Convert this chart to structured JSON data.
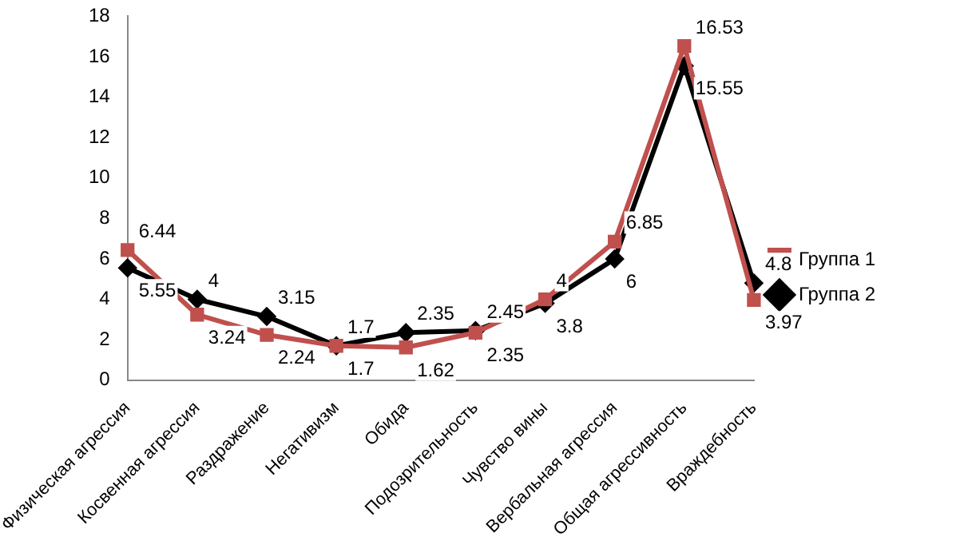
{
  "chart_data": {
    "type": "line",
    "categories": [
      "Физическая агрессия",
      "Косвенная агрессия",
      "Раздражение",
      "Негативизм",
      "Обида",
      "Подозрительность",
      "Чувство вины",
      "Вербальная агрессия",
      "Общая агрессивность",
      "Враждебность"
    ],
    "series": [
      {
        "name": "Группа 1",
        "color": "#c0504d",
        "marker": "square",
        "values": [
          6.44,
          3.24,
          2.24,
          1.7,
          1.62,
          2.35,
          4,
          6.85,
          16.53,
          3.97
        ]
      },
      {
        "name": "Группа 2",
        "color": "#000000",
        "marker": "diamond",
        "values": [
          5.55,
          4,
          3.15,
          1.7,
          2.35,
          2.45,
          3.8,
          6,
          15.55,
          4.8
        ]
      }
    ],
    "ylim": [
      0,
      18
    ],
    "yticks": [
      0,
      2,
      4,
      6,
      8,
      10,
      12,
      14,
      16,
      18
    ],
    "grid": false,
    "legend": "right",
    "data_labels": true
  }
}
